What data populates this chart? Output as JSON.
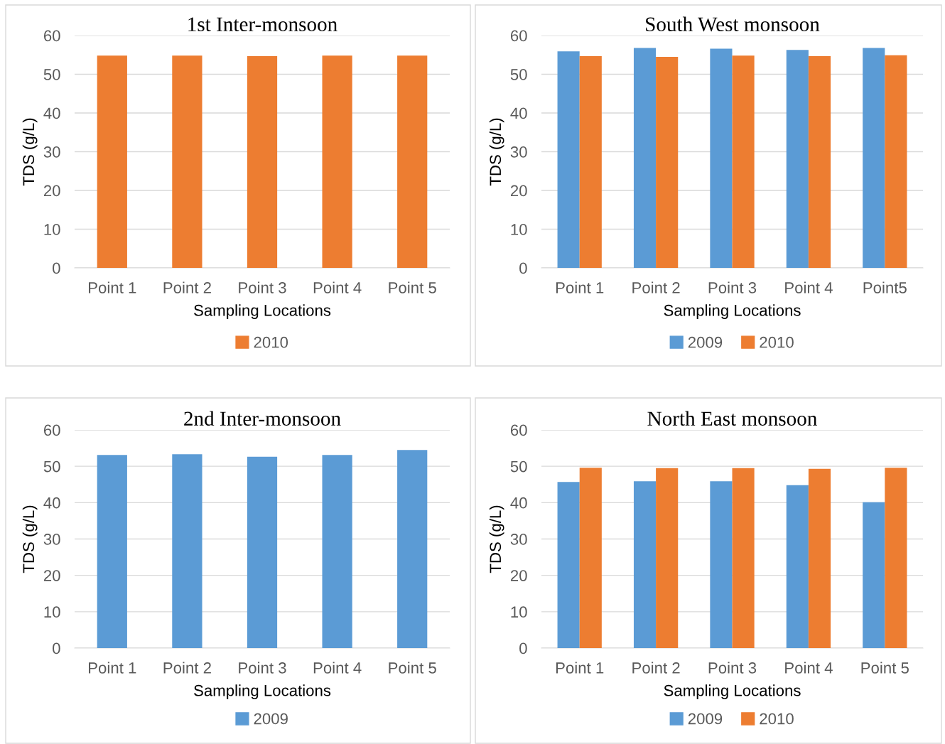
{
  "chart_data": [
    {
      "type": "bar",
      "title": "1st Inter-monsoon",
      "xlabel": "Sampling Locations",
      "ylabel": "TDS (g/L)",
      "categories": [
        "Point 1",
        "Point 2",
        "Point 3",
        "Point 4",
        "Point 5"
      ],
      "series": [
        {
          "name": "2010",
          "color": "#ed7d31",
          "values": [
            54.8,
            54.8,
            54.7,
            54.8,
            54.8
          ]
        }
      ],
      "ylim": [
        0,
        60
      ],
      "yticks": [
        0,
        10,
        20,
        30,
        40,
        50,
        60
      ],
      "grid": "y",
      "legend": "bottom"
    },
    {
      "type": "bar",
      "title": "South West monsoon",
      "xlabel": "Sampling Locations",
      "ylabel": "TDS (g/L)",
      "categories": [
        "Point 1",
        "Point 2",
        "Point 3",
        "Point 4",
        "Point5"
      ],
      "series": [
        {
          "name": "2009",
          "color": "#5b9bd5",
          "values": [
            55.9,
            56.8,
            56.6,
            56.3,
            56.8
          ]
        },
        {
          "name": "2010",
          "color": "#ed7d31",
          "values": [
            54.7,
            54.5,
            54.8,
            54.7,
            54.9
          ]
        }
      ],
      "ylim": [
        0,
        60
      ],
      "yticks": [
        0,
        10,
        20,
        30,
        40,
        50,
        60
      ],
      "grid": "y",
      "legend": "bottom"
    },
    {
      "type": "bar",
      "title": "2nd Inter-monsoon",
      "xlabel": "Sampling Locations",
      "ylabel": "TDS (g/L)",
      "categories": [
        "Point 1",
        "Point 2",
        "Point 3",
        "Point 4",
        "Point 5"
      ],
      "series": [
        {
          "name": "2009",
          "color": "#5b9bd5",
          "values": [
            53.1,
            53.3,
            52.6,
            53.1,
            54.5
          ]
        }
      ],
      "ylim": [
        0,
        60
      ],
      "yticks": [
        0,
        10,
        20,
        30,
        40,
        50,
        60
      ],
      "grid": "y",
      "legend": "bottom"
    },
    {
      "type": "bar",
      "title": "North East monsoon",
      "xlabel": "Sampling Locations",
      "ylabel": "TDS (g/L)",
      "categories": [
        "Point 1",
        "Point 2",
        "Point 3",
        "Point 4",
        "Point 5"
      ],
      "series": [
        {
          "name": "2009",
          "color": "#5b9bd5",
          "values": [
            45.7,
            45.9,
            45.9,
            44.8,
            40.1
          ]
        },
        {
          "name": "2010",
          "color": "#ed7d31",
          "values": [
            49.6,
            49.5,
            49.5,
            49.3,
            49.6
          ]
        }
      ],
      "ylim": [
        0,
        60
      ],
      "yticks": [
        0,
        10,
        20,
        30,
        40,
        50,
        60
      ],
      "grid": "y",
      "legend": "bottom"
    }
  ]
}
